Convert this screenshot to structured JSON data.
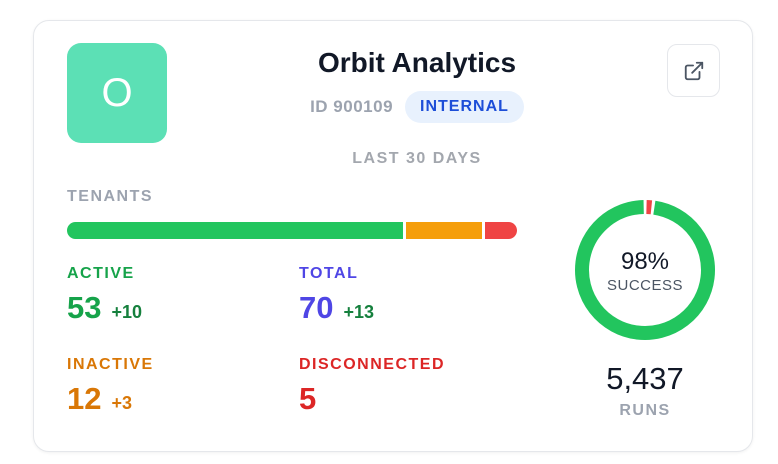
{
  "app": {
    "logo_letter": "O",
    "title": "Orbit Analytics",
    "id_text": "ID 900109",
    "badge": "INTERNAL",
    "period": "LAST 30 DAYS"
  },
  "tenants": {
    "label": "TENANTS",
    "bar": [
      {
        "name": "active",
        "value": 53,
        "color": "#22c55e"
      },
      {
        "name": "inactive",
        "value": 12,
        "color": "#f59e0b"
      },
      {
        "name": "disconnected",
        "value": 5,
        "color": "#ef4444"
      }
    ],
    "active": {
      "label": "ACTIVE",
      "value": "53",
      "delta": "+10",
      "color": "#16a34a"
    },
    "total": {
      "label": "TOTAL",
      "value": "70",
      "delta": "+13",
      "color": "#4f46e5"
    },
    "inactive": {
      "label": "INACTIVE",
      "value": "12",
      "delta": "+3",
      "color": "#d97706"
    },
    "disconnected": {
      "label": "DISCONNECTED",
      "value": "5",
      "color": "#dc2626"
    }
  },
  "success": {
    "percent_text": "98%",
    "percent": 98,
    "label": "SUCCESS",
    "success_color": "#22c55e",
    "fail_color": "#ef4444"
  },
  "runs": {
    "value": "5,437",
    "label": "RUNS"
  },
  "icons": {
    "open_button": "external-link-icon"
  }
}
